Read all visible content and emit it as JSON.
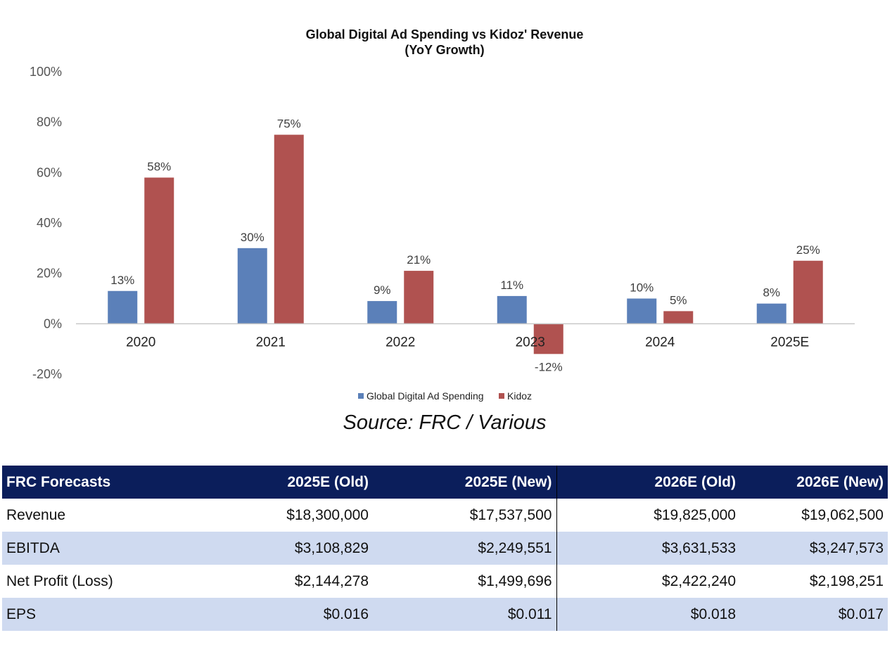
{
  "chart_data": {
    "type": "bar",
    "title": "Global Digital Ad Spending vs Kidoz' Revenue",
    "subtitle": "(YoY Growth)",
    "categories": [
      "2020",
      "2021",
      "2022",
      "2023",
      "2024",
      "2025E"
    ],
    "series": [
      {
        "name": "Global Digital Ad Spending",
        "color": "#5b80b9",
        "values": [
          13,
          30,
          9,
          11,
          10,
          8
        ],
        "labels": [
          "13%",
          "30%",
          "9%",
          "11%",
          "10%",
          "8%"
        ]
      },
      {
        "name": "Kidoz",
        "color": "#b05250",
        "values": [
          58,
          75,
          21,
          -12,
          5,
          25
        ],
        "labels": [
          "58%",
          "75%",
          "21%",
          "-12%",
          "5%",
          "25%"
        ]
      }
    ],
    "ylim": [
      -20,
      100
    ],
    "yticks": [
      100,
      80,
      60,
      40,
      20,
      0,
      -20
    ],
    "ytick_labels": [
      "100%",
      "80%",
      "60%",
      "40%",
      "20%",
      "0%",
      "-20%"
    ],
    "legend_position": "bottom",
    "grid": false
  },
  "source": "Source: FRC / Various",
  "table": {
    "headers": [
      "FRC Forecasts",
      "2025E (Old)",
      "2025E (New)",
      "2026E (Old)",
      "2026E (New)"
    ],
    "rows": [
      [
        "Revenue",
        "$18,300,000",
        "$17,537,500",
        "$19,825,000",
        "$19,062,500"
      ],
      [
        "EBITDA",
        "$3,108,829",
        "$2,249,551",
        "$3,631,533",
        "$3,247,573"
      ],
      [
        "Net Profit (Loss)",
        "$2,144,278",
        "$1,499,696",
        "$2,422,240",
        "$2,198,251"
      ],
      [
        "EPS",
        "$0.016",
        "$0.011",
        "$0.018",
        "$0.017"
      ]
    ]
  }
}
